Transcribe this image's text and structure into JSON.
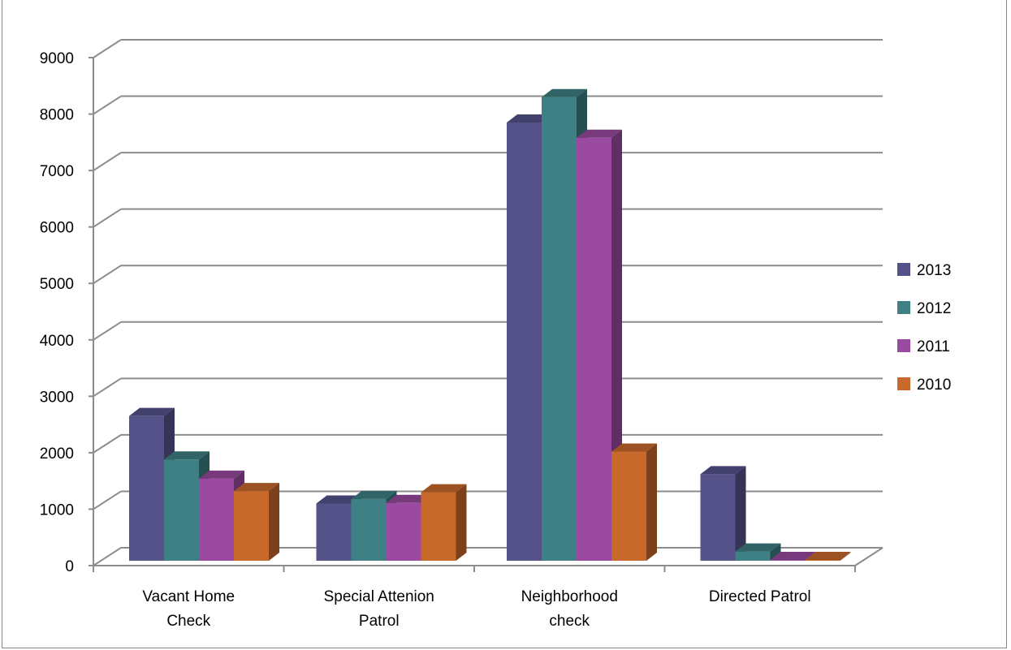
{
  "chart_data": {
    "type": "bar",
    "categories": [
      [
        "Vacant Home",
        "Check"
      ],
      [
        "Special Attenion",
        "Patrol"
      ],
      [
        "Neighborhood",
        "check"
      ],
      [
        "Directed Patrol"
      ]
    ],
    "series": [
      {
        "name": "2013",
        "color": "#55528a",
        "values": [
          2650,
          1100,
          7850,
          1620
        ]
      },
      {
        "name": "2012",
        "color": "#3e8083",
        "values": [
          1880,
          1180,
          8300,
          250
        ]
      },
      {
        "name": "2011",
        "color": "#9a4aa0",
        "values": [
          1540,
          1110,
          7580,
          0
        ]
      },
      {
        "name": "2010",
        "color": "#c8692c",
        "values": [
          1320,
          1300,
          2020,
          0
        ]
      }
    ],
    "ylim": [
      0,
      9000
    ],
    "yticks": [
      "0",
      "1000",
      "2000",
      "3000",
      "4000",
      "5000",
      "6000",
      "7000",
      "8000",
      "9000"
    ],
    "grid": true,
    "legend_position": "right",
    "style": "3d-clustered-column"
  }
}
